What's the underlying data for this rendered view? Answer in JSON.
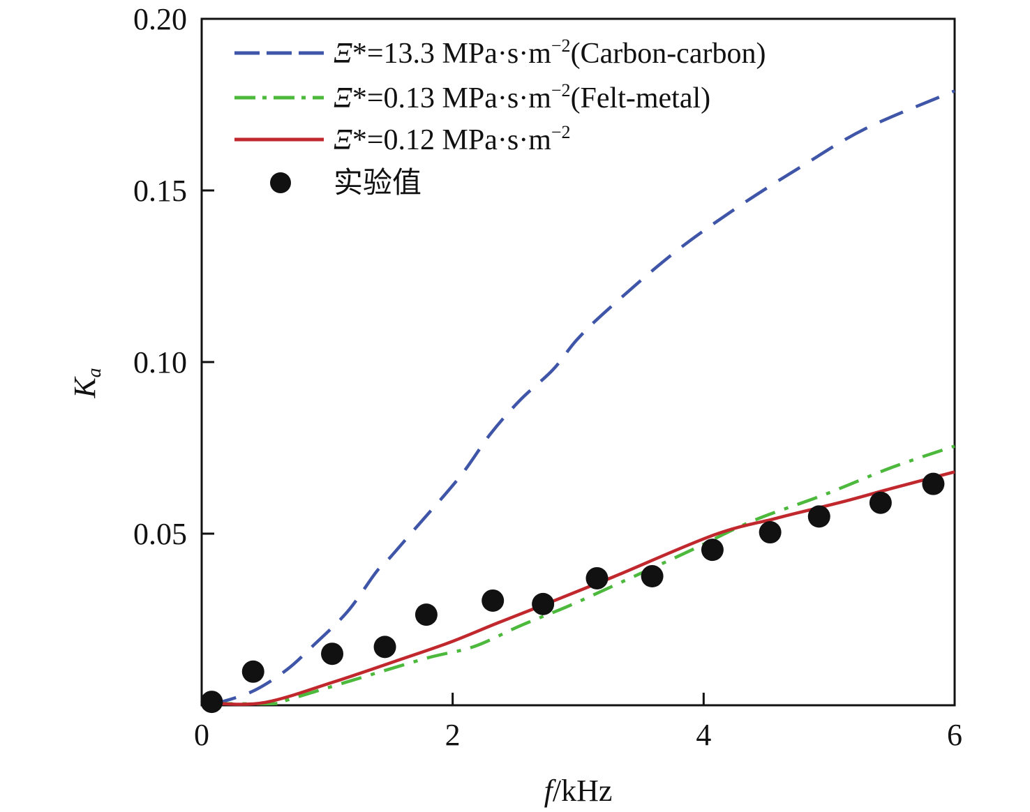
{
  "chart_data": {
    "type": "line",
    "title": "",
    "xlabel": {
      "italic": "f",
      "rest": "/kHz"
    },
    "ylabel": {
      "main": "K",
      "sub": "a"
    },
    "xlim": [
      0,
      6
    ],
    "ylim": [
      0,
      0.2
    ],
    "xticks": [
      0,
      2,
      4,
      6
    ],
    "xtick_labels": [
      "0",
      "2",
      "4",
      "6"
    ],
    "yticks": [
      0.05,
      0.1,
      0.15,
      0.2
    ],
    "ytick_labels": [
      "0.05",
      "0.10",
      "0.15",
      "0.20"
    ],
    "grid": false,
    "legend_position": "top-left",
    "series": [
      {
        "name": "Ξ*=13.3 MPa·s·m⁻²(Carbon-carbon)",
        "legend": {
          "symbol": "Ξ",
          "pre": "*=13.3 MPa·s·m",
          "sup": "−2",
          "post": "(Carbon-carbon)"
        },
        "style": "dashed",
        "color": "#3f55a8",
        "x": [
          0.08,
          0.16,
          0.42,
          0.68,
          0.88,
          1.16,
          1.39,
          1.5,
          1.69,
          2.06,
          2.3,
          2.54,
          2.8,
          2.99,
          3.24,
          3.76,
          4.27,
          4.78,
          5.29,
          6.0
        ],
        "y": [
          0.0005,
          0.001,
          0.0043,
          0.0104,
          0.0171,
          0.0272,
          0.0388,
          0.043,
          0.051,
          0.0667,
          0.079,
          0.089,
          0.0978,
          0.1065,
          0.1154,
          0.1317,
          0.1451,
          0.157,
          0.168,
          0.179
        ]
      },
      {
        "name": "Ξ*=0.13 MPa·s·m⁻²(Felt-metal)",
        "legend": {
          "symbol": "Ξ",
          "pre": "*=0.13 MPa·s·m",
          "sup": "−2",
          "post": "(Felt-metal)"
        },
        "style": "dashdot",
        "color": "#4cb83c",
        "x": [
          0.08,
          0.6,
          0.69,
          1.24,
          1.8,
          2.17,
          2.54,
          2.91,
          3.28,
          3.86,
          4.39,
          4.95,
          5.5,
          6.0
        ],
        "y": [
          0.0005,
          0.0005,
          0.0016,
          0.0077,
          0.0138,
          0.0171,
          0.0232,
          0.0287,
          0.0348,
          0.0445,
          0.0537,
          0.0612,
          0.0693,
          0.0755
        ]
      },
      {
        "name": "Ξ*=0.12 MPa·s·m⁻²",
        "legend": {
          "symbol": "Ξ",
          "pre": "*=0.12 MPa·s·m",
          "sup": "−2",
          "post": ""
        },
        "style": "solid",
        "color": "#c0282e",
        "x": [
          0.08,
          0.5,
          1.06,
          1.62,
          1.99,
          2.36,
          2.73,
          3.28,
          4.08,
          4.58,
          5.13,
          5.5,
          6.0
        ],
        "y": [
          0.0006,
          0.0008,
          0.0069,
          0.0138,
          0.0185,
          0.024,
          0.0293,
          0.0374,
          0.0496,
          0.0545,
          0.0595,
          0.0632,
          0.068
        ]
      },
      {
        "name": "实验值",
        "legend": {
          "symbol": "",
          "pre": "实验值",
          "sup": "",
          "post": ""
        },
        "style": "markers",
        "color": "#111111",
        "x": [
          0.08,
          0.41,
          1.04,
          1.46,
          1.79,
          2.32,
          2.72,
          3.15,
          3.59,
          4.07,
          4.53,
          4.92,
          5.41,
          5.83
        ],
        "y": [
          0.001,
          0.0098,
          0.015,
          0.017,
          0.0264,
          0.0305,
          0.0295,
          0.037,
          0.0376,
          0.0453,
          0.0504,
          0.055,
          0.059,
          0.0645
        ]
      }
    ]
  }
}
